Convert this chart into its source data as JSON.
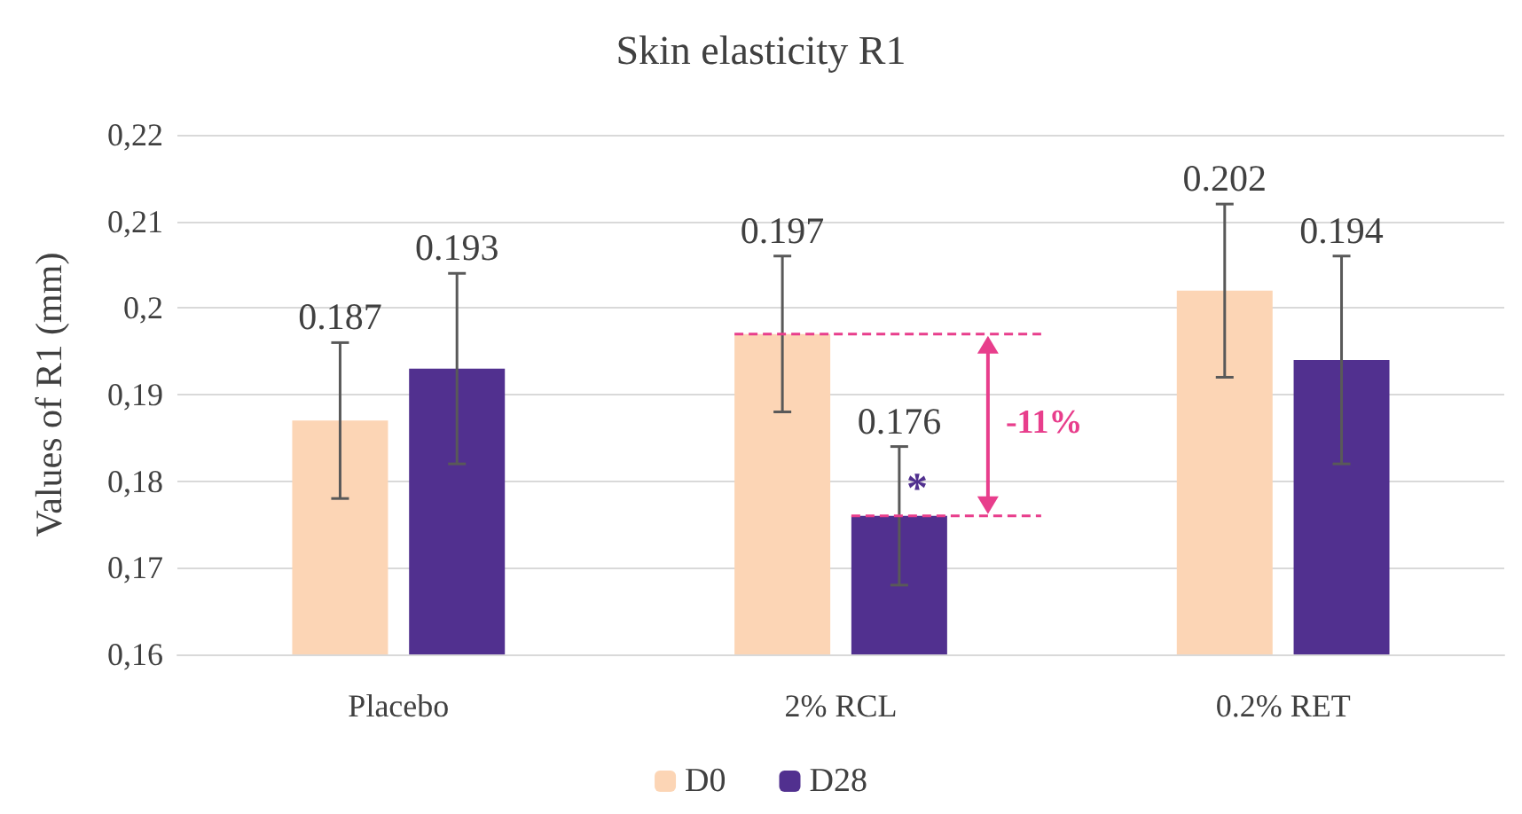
{
  "chart_data": {
    "type": "bar",
    "title": "Skin elasticity R1",
    "ylabel": "Values of R1 (mm)",
    "categories": [
      "Placebo",
      "2% RCL",
      "0.2% RET"
    ],
    "series": [
      {
        "name": "D0",
        "color": "#fcd5b5",
        "values": [
          0.187,
          0.197,
          0.202
        ],
        "errors": [
          [
            0.178,
            0.196
          ],
          [
            0.188,
            0.206
          ],
          [
            0.192,
            0.212
          ]
        ]
      },
      {
        "name": "D28",
        "color": "#51308f",
        "values": [
          0.193,
          0.176,
          0.194
        ],
        "errors": [
          [
            0.182,
            0.204
          ],
          [
            0.168,
            0.184
          ],
          [
            0.182,
            0.206
          ]
        ]
      }
    ],
    "ylim": [
      0.16,
      0.22
    ],
    "yticks": [
      {
        "value": 0.16,
        "label": "0,16"
      },
      {
        "value": 0.17,
        "label": "0,17"
      },
      {
        "value": 0.18,
        "label": "0,18"
      },
      {
        "value": 0.19,
        "label": "0,19"
      },
      {
        "value": 0.2,
        "label": "0,2"
      },
      {
        "value": 0.21,
        "label": "0,21"
      },
      {
        "value": 0.22,
        "label": "0,22"
      }
    ],
    "grid": "y",
    "legend": "bottom",
    "data_labels": true,
    "annotations": [
      "*",
      "-11%"
    ]
  }
}
